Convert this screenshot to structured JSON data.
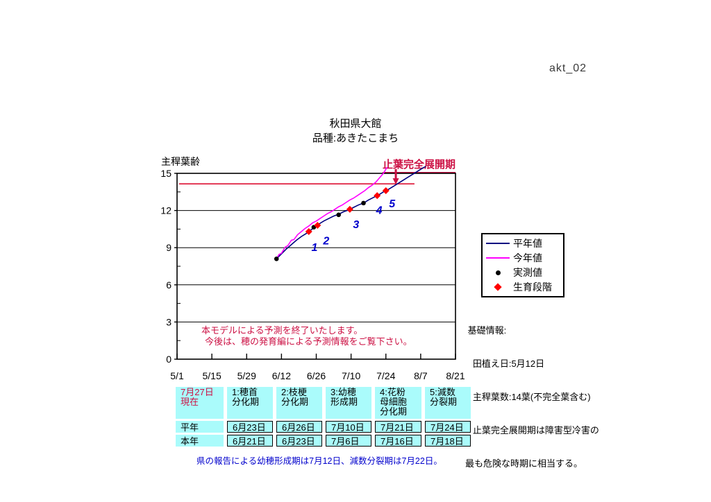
{
  "doc_code": "akt_02",
  "title": "秋田県大館",
  "subtitle": "品種:あきたこまち",
  "colors": {
    "normal_year_line": "#000080",
    "this_year_line": "#FF00FF",
    "measured_dot": "#000000",
    "stage_diamond": "#FF0000",
    "crimson_annotation": "#CC1144",
    "reference_line": "#DD1133",
    "stage_number_blue": "#0000CC",
    "table_bg_cyan": "#AAFBFB",
    "footnote_blue": "#0000CC"
  },
  "legend": {
    "items": [
      {
        "label": "平年値",
        "marker": "line",
        "color_key": "normal_year_line"
      },
      {
        "label": "今年値",
        "marker": "line",
        "color_key": "this_year_line"
      },
      {
        "label": "実測値",
        "marker": "dot",
        "color_key": "measured_dot"
      },
      {
        "label": "生育段階",
        "marker": "diamond",
        "color_key": "stage_diamond"
      }
    ]
  },
  "notice": {
    "line1": "本モデルによる予測を終了いたします。",
    "line2": "今後は、穂の発育編による予測情報をご覧下さい。"
  },
  "info": {
    "lines": [
      " 基礎情報:",
      "   田植え日:5月12日",
      "   主稈葉数:14葉(不完全葉含む)",
      "   止葉完全展開期は障害型冷害の",
      "最も危険な時期に相当する。"
    ]
  },
  "footnote": "県の報告による幼穂形成期は7月12日、減数分裂期は7月22日。",
  "table": {
    "corner": "7月27日\n現在",
    "columns": [
      "1:穂首\n分化期",
      "2:枝梗\n分化期",
      "3:幼穂\n形成期",
      "4:花粉\n母細胞\n分化期",
      "5:減数\n分裂期"
    ],
    "rows": [
      {
        "label": "平年",
        "values": [
          "6月23日",
          "6月26日",
          "7月10日",
          "7月21日",
          "7月24日"
        ]
      },
      {
        "label": "本年",
        "values": [
          "6月21日",
          "6月23日",
          "7月6日",
          "7月16日",
          "7月18日"
        ]
      }
    ]
  },
  "chart_data": {
    "type": "line",
    "title": "秋田県大館 品種:あきたこまち",
    "ylabel": "主稈葉齢",
    "ylim": [
      0,
      15
    ],
    "y_major_ticks": [
      0,
      3,
      6,
      9,
      12,
      15
    ],
    "y_minor_ticks": [
      1.5,
      4.5,
      7.5,
      10.5,
      13.5
    ],
    "x_unit": "days since 5/1",
    "x_range_days": [
      0,
      112
    ],
    "x_tick_days": [
      0,
      14,
      28,
      42,
      56,
      70,
      84,
      98,
      112
    ],
    "x_tick_labels": [
      "5/1",
      "5/15",
      "5/29",
      "6/12",
      "6/26",
      "7/10",
      "7/24",
      "8/7",
      "8/21"
    ],
    "grid": "horizontal-only",
    "reference_line": {
      "value": 14.15,
      "day_start": 0.8,
      "day_end": 95.5,
      "meaning": "14葉(止葉)完全展開レベル"
    },
    "annotation": {
      "text": "止葉完全展開期",
      "arrow_day": 88,
      "arrow_value_from": 15.35,
      "arrow_value_to": 14.1
    },
    "series": [
      {
        "name": "平年値",
        "type": "line",
        "color_key": "normal_year_line",
        "points": [
          [
            40,
            8.1
          ],
          [
            42,
            8.5
          ],
          [
            44,
            8.9
          ],
          [
            46,
            9.25
          ],
          [
            48,
            9.6
          ],
          [
            50,
            9.9
          ],
          [
            52,
            10.15
          ],
          [
            54,
            10.45
          ],
          [
            55,
            10.6
          ],
          [
            57,
            10.9
          ],
          [
            59,
            11.15
          ],
          [
            61,
            11.35
          ],
          [
            63,
            11.55
          ],
          [
            65,
            11.7
          ],
          [
            67,
            11.9
          ],
          [
            69,
            12.05
          ],
          [
            71,
            12.25
          ],
          [
            73,
            12.45
          ],
          [
            75,
            12.6
          ],
          [
            77,
            12.85
          ],
          [
            79,
            13.05
          ],
          [
            81,
            13.25
          ],
          [
            83,
            13.5
          ],
          [
            85,
            13.7
          ],
          [
            87,
            13.95
          ],
          [
            89,
            14.2
          ],
          [
            91,
            14.45
          ],
          [
            93,
            14.7
          ],
          [
            95,
            14.95
          ],
          [
            97,
            15.2
          ],
          [
            99,
            15.45
          ],
          [
            100,
            15.55
          ]
        ]
      },
      {
        "name": "今年値",
        "type": "line",
        "color_key": "this_year_line",
        "points": [
          [
            40,
            8.1
          ],
          [
            41,
            8.45
          ],
          [
            42,
            8.55
          ],
          [
            43.5,
            9.05
          ],
          [
            44.5,
            9.15
          ],
          [
            46,
            9.6
          ],
          [
            47,
            9.65
          ],
          [
            48.5,
            10.05
          ],
          [
            50,
            10.3
          ],
          [
            51.5,
            10.55
          ],
          [
            53,
            10.75
          ],
          [
            54.5,
            11.0
          ],
          [
            56,
            11.15
          ],
          [
            57.5,
            11.35
          ],
          [
            59,
            11.55
          ],
          [
            60.5,
            11.75
          ],
          [
            62,
            11.9
          ],
          [
            63.5,
            12.1
          ],
          [
            65,
            12.3
          ],
          [
            66.5,
            12.45
          ],
          [
            68,
            12.65
          ],
          [
            69.5,
            12.85
          ],
          [
            71,
            13.0
          ],
          [
            72.5,
            13.2
          ],
          [
            74,
            13.4
          ],
          [
            75.5,
            13.6
          ],
          [
            77,
            13.85
          ],
          [
            78.5,
            14.05
          ],
          [
            80,
            14.3
          ],
          [
            81.5,
            14.65
          ],
          [
            83,
            15.0
          ],
          [
            84.5,
            15.5
          ]
        ]
      },
      {
        "name": "実測値",
        "type": "dot",
        "color_key": "measured_dot",
        "points": [
          [
            40,
            8.1
          ],
          [
            55,
            10.65
          ],
          [
            65,
            11.65
          ],
          [
            75,
            12.6
          ]
        ]
      },
      {
        "name": "生育段階",
        "type": "diamond",
        "color_key": "stage_diamond",
        "points": [
          [
            53,
            10.3
          ],
          [
            56.5,
            10.8
          ],
          [
            69.5,
            12.1
          ],
          [
            80.5,
            13.2
          ],
          [
            84,
            13.6
          ]
        ]
      }
    ],
    "stage_labels": [
      {
        "text": "1",
        "day": 55.3,
        "value": 9.0
      },
      {
        "text": "2",
        "day": 60.0,
        "value": 9.55
      },
      {
        "text": "3",
        "day": 72.0,
        "value": 10.85
      },
      {
        "text": "4",
        "day": 81.3,
        "value": 12.0
      },
      {
        "text": "5",
        "day": 86.5,
        "value": 12.55
      }
    ]
  }
}
